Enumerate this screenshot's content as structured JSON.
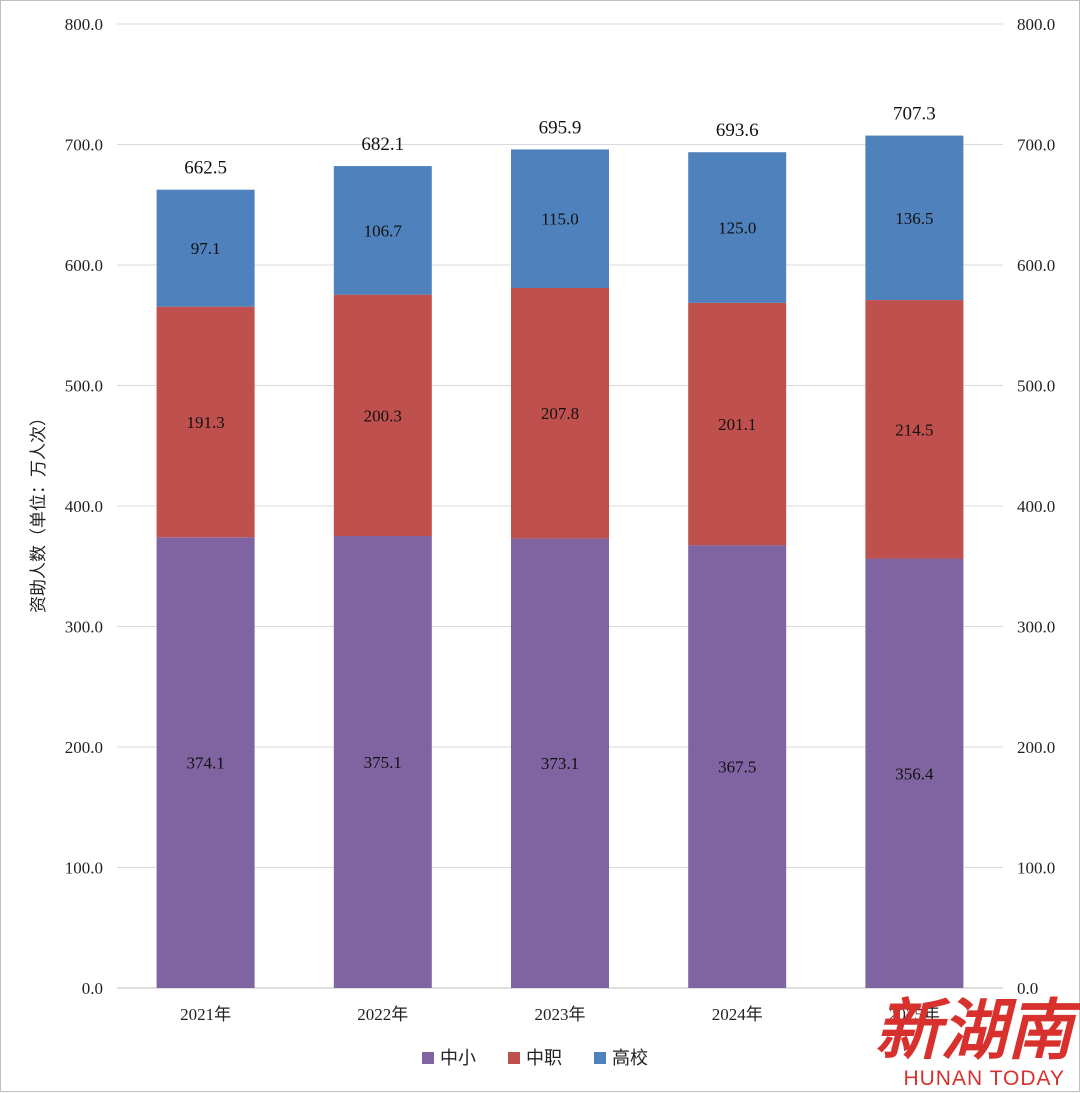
{
  "chart_data": {
    "type": "bar",
    "stacked": true,
    "categories": [
      "2021年",
      "2022年",
      "2023年",
      "2024年",
      "2025年"
    ],
    "series": [
      {
        "name": "中小",
        "color": "#8064a2",
        "values": [
          374.1,
          375.1,
          373.1,
          367.5,
          356.4
        ]
      },
      {
        "name": "中职",
        "color": "#c0504d",
        "values": [
          191.3,
          200.3,
          207.8,
          201.1,
          214.5
        ]
      },
      {
        "name": "高校",
        "color": "#4f81bd",
        "values": [
          97.1,
          106.7,
          115.0,
          125.0,
          136.5
        ]
      }
    ],
    "totals": [
      662.5,
      682.1,
      695.9,
      693.6,
      707.3
    ],
    "ylabel": "资助人数（单位：万人次）",
    "ylim": [
      0,
      800
    ],
    "yticks": [
      "0.0",
      "100.0",
      "200.0",
      "300.0",
      "400.0",
      "500.0",
      "600.0",
      "700.0",
      "800.0"
    ],
    "secondary_axis": true,
    "grid": true,
    "legend_position": "bottom"
  },
  "watermark": {
    "main": "新湖南",
    "sub": "HUNAN TODAY"
  }
}
